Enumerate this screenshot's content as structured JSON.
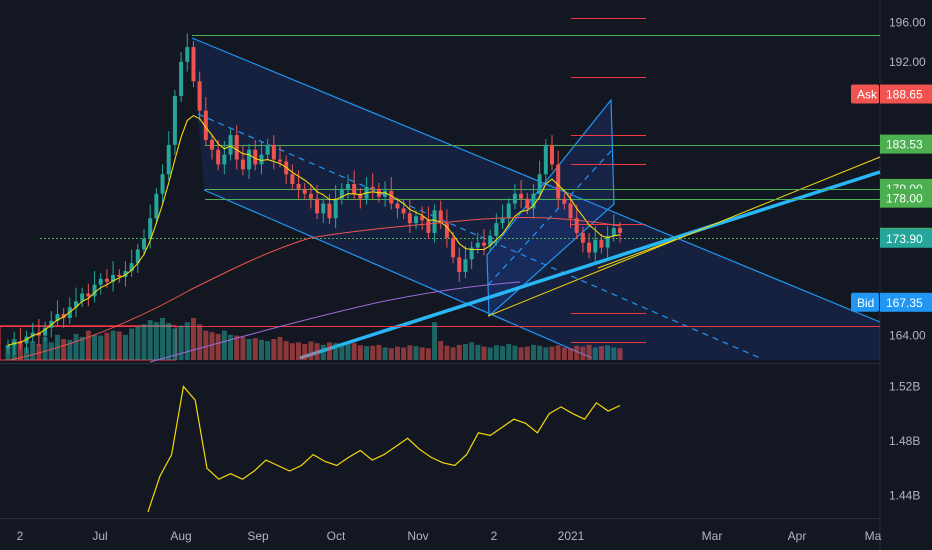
{
  "chart_data": [
    {
      "type": "candlestick",
      "price_axis": {
        "ticks": [
          "196.00",
          "192.00",
          "164.00"
        ],
        "ylim": [
          161.5,
          197.5
        ]
      },
      "x_axis": {
        "ticks": [
          "2",
          "Jul",
          "Aug",
          "Sep",
          "Oct",
          "Nov",
          "2",
          "2021",
          "Mar",
          "Apr",
          "Ma"
        ]
      },
      "badges": [
        {
          "label": "Ask",
          "value": "188.65",
          "color": "#f05350"
        },
        {
          "label": "",
          "value": "183.53",
          "color": "#4caf50"
        },
        {
          "label": "",
          "value": "179.00",
          "color": "#4caf50"
        },
        {
          "label": "",
          "value": "178.00",
          "color": "#4caf50"
        },
        {
          "label": "",
          "value": "174.00",
          "color": "#4caf50"
        },
        {
          "label": "",
          "value": "173.90",
          "color": "#26a69a"
        },
        {
          "label": "Bid",
          "value": "167.35",
          "color": "#2196f3"
        }
      ],
      "horizontal_levels": [
        194.7,
        183.53,
        179.0,
        178.0,
        174.0,
        165.0
      ],
      "close_series": [
        163.0,
        163.4,
        163.2,
        163.9,
        164.3,
        164.0,
        164.8,
        165.5,
        166.2,
        165.8,
        166.9,
        167.5,
        168.3,
        168.0,
        169.2,
        169.8,
        169.5,
        170.2,
        170.0,
        170.6,
        171.4,
        172.8,
        173.9,
        176.0,
        178.5,
        180.5,
        183.5,
        188.5,
        192.0,
        193.5,
        190.0,
        187.0,
        184.0,
        183.0,
        181.5,
        182.5,
        184.5,
        182.0,
        181.0,
        183.0,
        181.5,
        182.5,
        183.5,
        182.0,
        181.8,
        180.5,
        179.5,
        179.0,
        178.5,
        178.0,
        176.5,
        177.5,
        176.0,
        178.0,
        179.0,
        179.5,
        178.5,
        178.0,
        179.2,
        179.0,
        178.2,
        178.8,
        177.5,
        177.0,
        176.5,
        175.5,
        176.2,
        175.8,
        174.5,
        176.8,
        175.5,
        174.0,
        172.0,
        170.5,
        171.8,
        173.0,
        173.5,
        173.2,
        174.2,
        175.5,
        176.0,
        177.5,
        178.5,
        178.0,
        177.0,
        178.5,
        180.5,
        183.5,
        181.5,
        178.0,
        177.5,
        176.0,
        174.5,
        173.5,
        172.5,
        173.8,
        173.0,
        174.2,
        175.0,
        174.5
      ],
      "ma_fast": [
        163.0,
        163.2,
        163.3,
        163.6,
        164.0,
        164.2,
        164.6,
        165.1,
        165.6,
        165.9,
        166.4,
        166.9,
        167.5,
        167.8,
        168.4,
        168.9,
        169.2,
        169.6,
        169.9,
        170.2,
        170.7,
        171.4,
        172.3,
        173.7,
        175.5,
        177.4,
        179.6,
        182.0,
        184.3,
        186.0,
        186.5,
        186.2,
        185.3,
        184.5,
        183.6,
        183.1,
        183.4,
        183.0,
        182.6,
        182.5,
        182.1,
        181.9,
        182.0,
        181.8,
        181.6,
        181.2,
        180.7,
        180.3,
        179.9,
        179.4,
        178.7,
        178.4,
        177.9,
        177.9,
        178.2,
        178.5,
        178.5,
        178.4,
        178.6,
        178.7,
        178.6,
        178.6,
        178.3,
        177.9,
        177.5,
        176.9,
        176.6,
        176.3,
        175.8,
        175.8,
        175.6,
        175.1,
        174.3,
        173.4,
        172.9,
        172.8,
        172.8,
        172.8,
        173.2,
        173.8,
        174.4,
        175.3,
        176.2,
        176.7,
        176.8,
        177.3,
        178.2,
        179.5,
        180.0,
        179.4,
        178.8,
        178.0,
        177.0,
        176.2,
        175.3,
        174.8,
        174.2,
        174.0,
        174.2,
        174.3
      ],
      "volume_series": [
        0.35,
        0.5,
        0.4,
        0.3,
        0.45,
        0.38,
        0.55,
        0.42,
        0.6,
        0.5,
        0.48,
        0.62,
        0.55,
        0.7,
        0.6,
        0.58,
        0.65,
        0.7,
        0.68,
        0.6,
        0.75,
        0.8,
        0.85,
        0.95,
        0.9,
        1.0,
        0.88,
        0.75,
        0.82,
        0.9,
        1.0,
        0.85,
        0.7,
        0.66,
        0.62,
        0.7,
        0.6,
        0.58,
        0.55,
        0.5,
        0.52,
        0.48,
        0.45,
        0.5,
        0.55,
        0.45,
        0.4,
        0.42,
        0.38,
        0.44,
        0.4,
        0.36,
        0.42,
        0.4,
        0.36,
        0.38,
        0.4,
        0.35,
        0.33,
        0.34,
        0.36,
        0.3,
        0.28,
        0.32,
        0.3,
        0.35,
        0.33,
        0.3,
        0.28,
        0.9,
        0.45,
        0.34,
        0.3,
        0.36,
        0.38,
        0.42,
        0.36,
        0.32,
        0.3,
        0.35,
        0.33,
        0.38,
        0.34,
        0.3,
        0.32,
        0.36,
        0.34,
        0.3,
        0.32,
        0.35,
        0.3,
        0.28,
        0.34,
        0.32,
        0.36,
        0.3,
        0.33,
        0.35,
        0.3,
        0.28
      ],
      "indicator": {
        "axis_ticks": [
          "1.52B",
          "1.48B",
          "1.44B"
        ],
        "ylim": [
          1.425,
          1.535
        ],
        "values_b": [
          1.428,
          1.454,
          1.47,
          1.52,
          1.51,
          1.46,
          1.452,
          1.456,
          1.452,
          1.458,
          1.466,
          1.462,
          1.458,
          1.462,
          1.47,
          1.465,
          1.462,
          1.468,
          1.473,
          1.466,
          1.47,
          1.476,
          1.482,
          1.474,
          1.468,
          1.464,
          1.462,
          1.47,
          1.486,
          1.484,
          1.49,
          1.496,
          1.493,
          1.486,
          1.5,
          1.505,
          1.5,
          1.496,
          1.508,
          1.502,
          1.506
        ]
      }
    }
  ]
}
